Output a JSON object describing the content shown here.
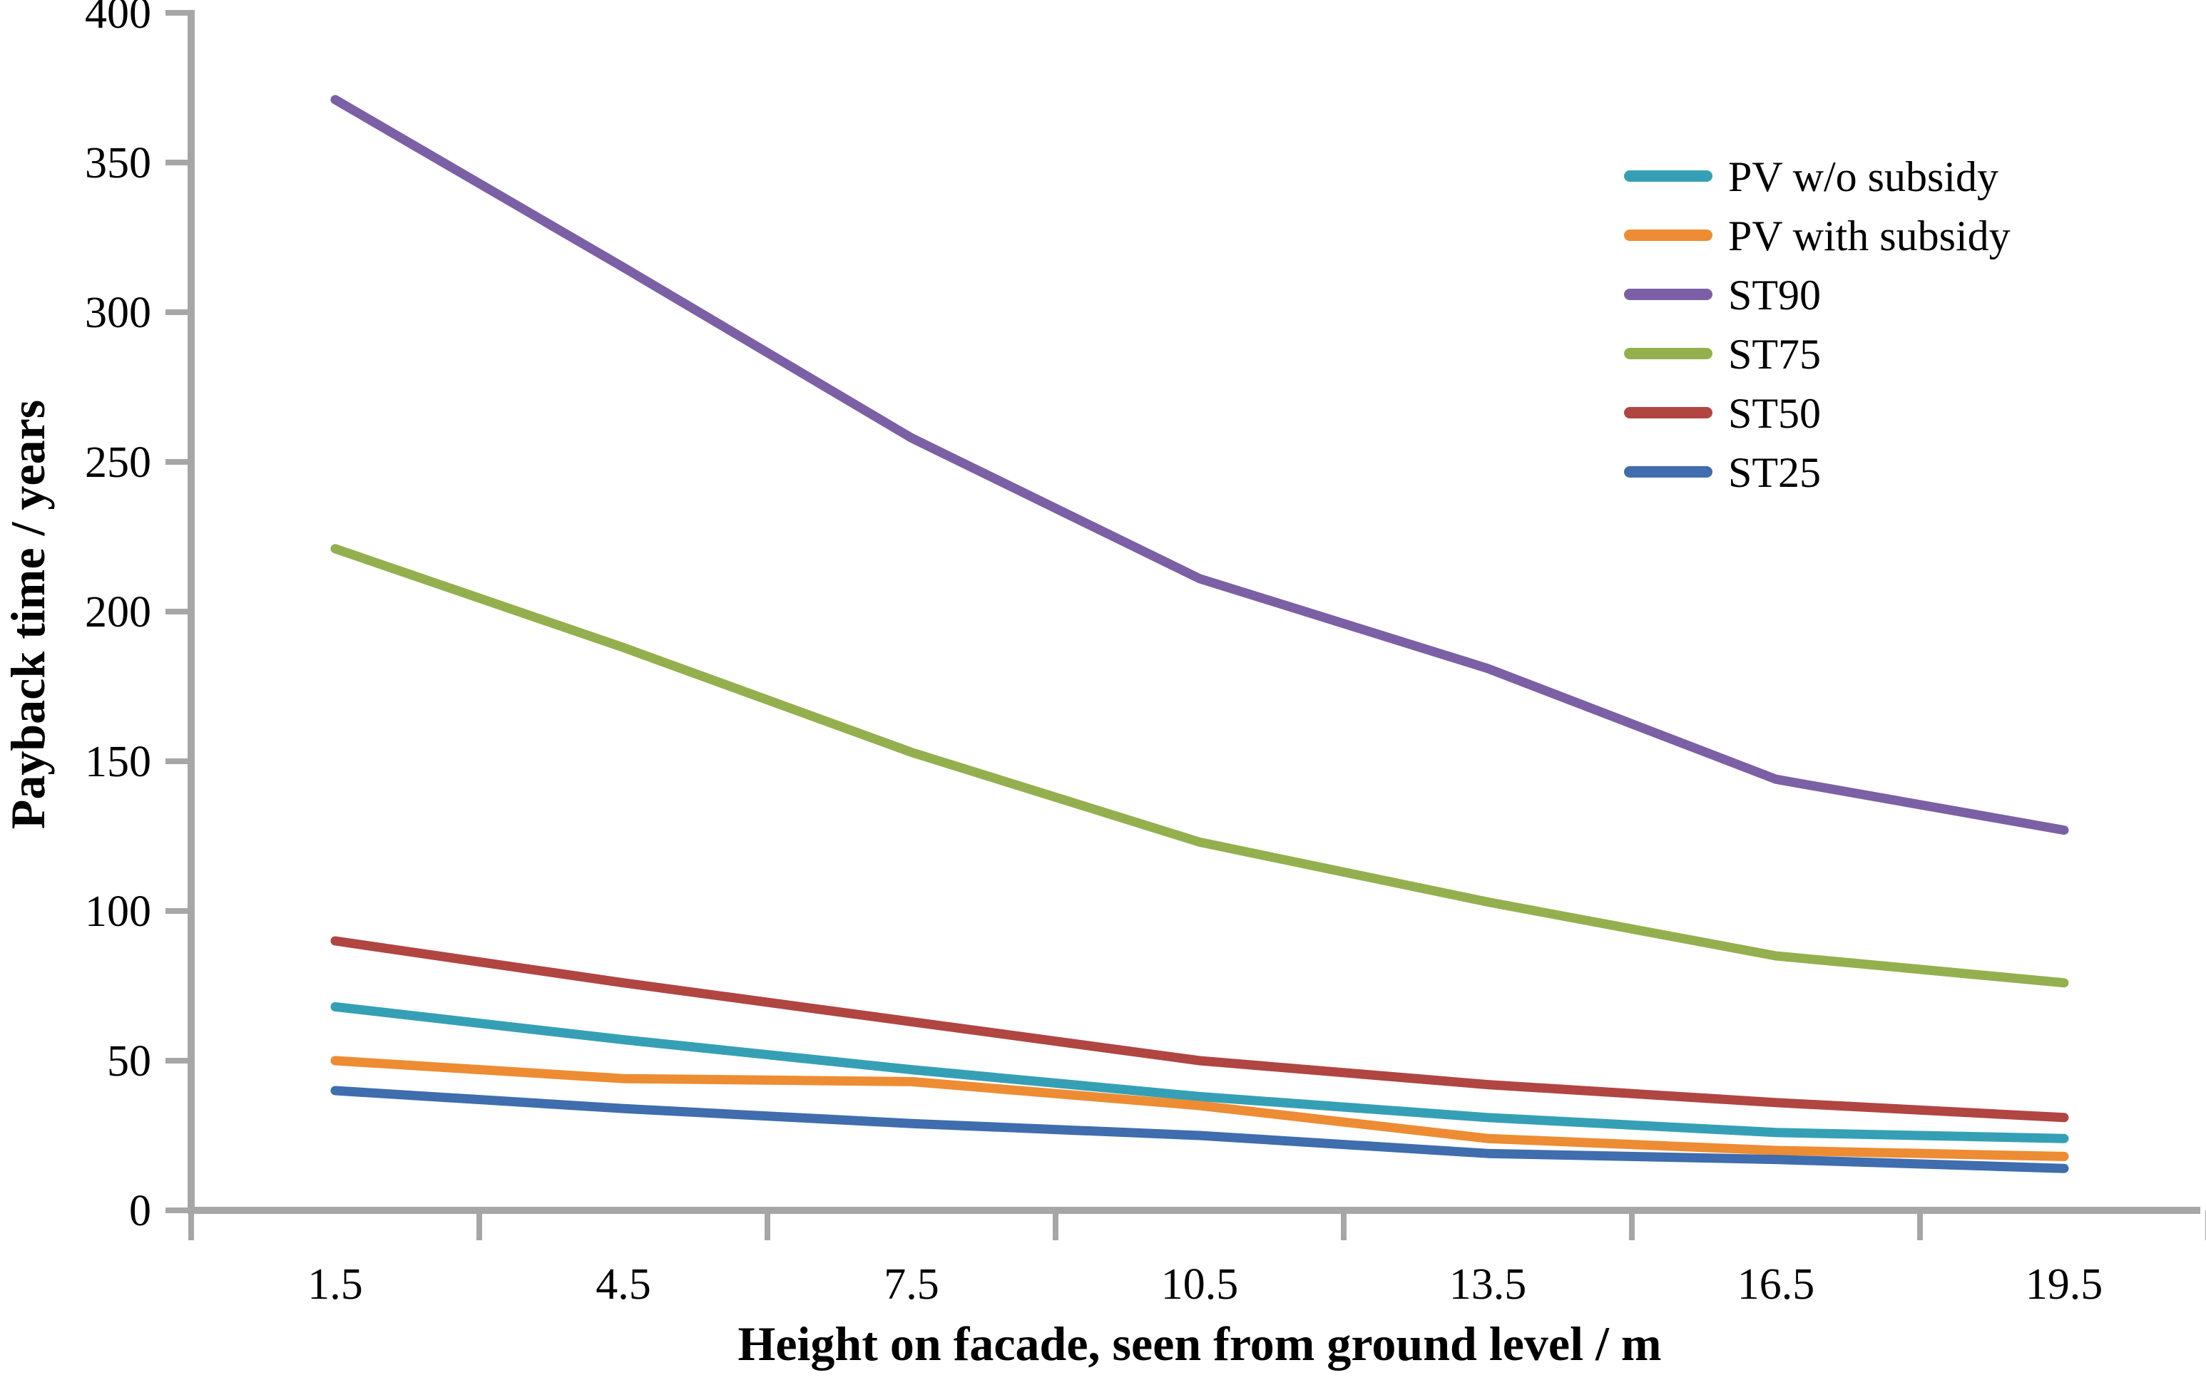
{
  "chart_data": {
    "type": "line",
    "title": "",
    "xlabel": "Height on facade, seen from ground level / m",
    "ylabel": "Payback time / years",
    "x": [
      1.5,
      4.5,
      7.5,
      10.5,
      13.5,
      16.5,
      19.5
    ],
    "x_tick_labels": [
      "1.5",
      "4.5",
      "7.5",
      "10.5",
      "13.5",
      "16.5",
      "19.5"
    ],
    "ylim": [
      0,
      400
    ],
    "ytick_step": 50,
    "y_tick_labels": [
      "0",
      "50",
      "100",
      "150",
      "200",
      "250",
      "300",
      "350",
      "400"
    ],
    "grid": false,
    "legend_position": "upper right",
    "axis_color": "#A6A6A6",
    "text_color": "#000000",
    "series": [
      {
        "name": "PV w/o subsidy",
        "color": "#35A0B5",
        "values": [
          68,
          57,
          47,
          38,
          31,
          26,
          24
        ]
      },
      {
        "name": "PV with subsidy",
        "color": "#ED8C33",
        "values": [
          50,
          44,
          43,
          35,
          24,
          20,
          18
        ]
      },
      {
        "name": "ST90",
        "color": "#7C60A5",
        "values": [
          371,
          315,
          258,
          211,
          181,
          144,
          127
        ]
      },
      {
        "name": "ST75",
        "color": "#94B04E",
        "values": [
          221,
          188,
          153,
          123,
          103,
          85,
          76
        ]
      },
      {
        "name": "ST50",
        "color": "#B04542",
        "values": [
          90,
          76,
          63,
          50,
          42,
          36,
          31
        ]
      },
      {
        "name": "ST25",
        "color": "#3F6DAD",
        "values": [
          40,
          34,
          29,
          25,
          19,
          17,
          14
        ]
      }
    ]
  }
}
